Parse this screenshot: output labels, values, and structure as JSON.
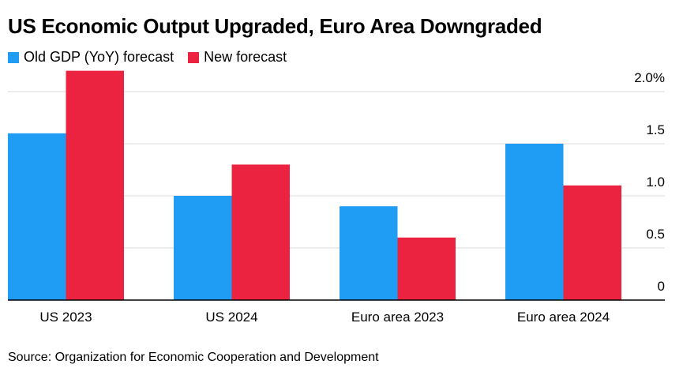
{
  "title": "US Economic Output Upgraded, Euro Area Downgraded",
  "source": "Source: Organization for Economic Cooperation and Development",
  "colors": {
    "old": "#1f9cf4",
    "new": "#ec2340",
    "grid": "#d9d9d9",
    "axis": "#000000"
  },
  "chart_data": {
    "type": "bar",
    "categories": [
      "US 2023",
      "US 2024",
      "Euro area 2023",
      "Euro area 2024"
    ],
    "series": [
      {
        "name": "Old GDP (YoY) forecast",
        "values": [
          1.6,
          1.0,
          0.9,
          1.5
        ]
      },
      {
        "name": "New forecast",
        "values": [
          2.2,
          1.3,
          0.6,
          1.1
        ]
      }
    ],
    "title": "US Economic Output Upgraded, Euro Area Downgraded",
    "xlabel": "",
    "ylabel": "",
    "ylim": [
      0,
      2.0
    ],
    "yticks": [
      0,
      0.5,
      1.0,
      1.5,
      2.0
    ],
    "ytick_labels": [
      "0",
      "0.5",
      "1.0",
      "1.5",
      "2.0%"
    ],
    "grid": true,
    "legend": "top-left",
    "yaxis_side": "right"
  }
}
